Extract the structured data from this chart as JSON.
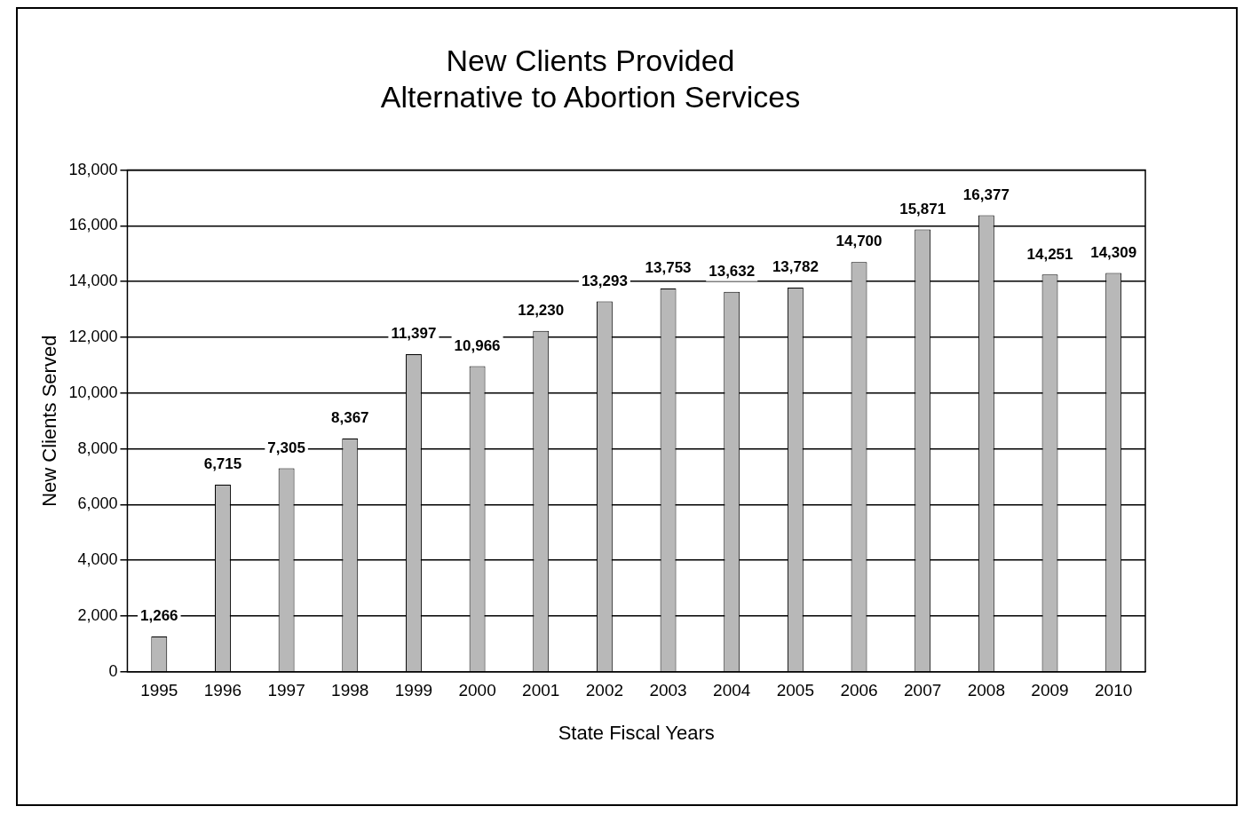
{
  "chart_data": {
    "type": "bar",
    "title": [
      "New Clients Provided",
      "Alternative to Abortion Services"
    ],
    "xlabel": "State Fiscal Years",
    "ylabel": "New Clients Served",
    "categories": [
      "1995",
      "1996",
      "1997",
      "1998",
      "1999",
      "2000",
      "2001",
      "2002",
      "2003",
      "2004",
      "2005",
      "2006",
      "2007",
      "2008",
      "2009",
      "2010"
    ],
    "values": [
      1266,
      6715,
      7305,
      8367,
      11397,
      10966,
      12230,
      13293,
      13753,
      13632,
      13782,
      14700,
      15871,
      16377,
      14251,
      14309
    ],
    "color": "#b8b8b8",
    "ylim": [
      0,
      18000
    ],
    "yticks": [
      {
        "value": 0,
        "label": "0"
      },
      {
        "value": 2000,
        "label": "2,000"
      },
      {
        "value": 4000,
        "label": "4,000"
      },
      {
        "value": 6000,
        "label": "6,000"
      },
      {
        "value": 8000,
        "label": "8,000"
      },
      {
        "value": 10000,
        "label": "10,000"
      },
      {
        "value": 12000,
        "label": "12,000"
      },
      {
        "value": 14000,
        "label": "14,000"
      },
      {
        "value": 16000,
        "label": "16,000"
      },
      {
        "value": 18000,
        "label": "18,000"
      }
    ],
    "value_labels": [
      "1,266",
      "6,715",
      "7,305",
      "8,367",
      "11,397",
      "10,966",
      "12,230",
      "13,293",
      "13,753",
      "13,632",
      "13,782",
      "14,700",
      "15,871",
      "16,377",
      "14,251",
      "14,309"
    ],
    "grid": "y",
    "legend": false
  }
}
